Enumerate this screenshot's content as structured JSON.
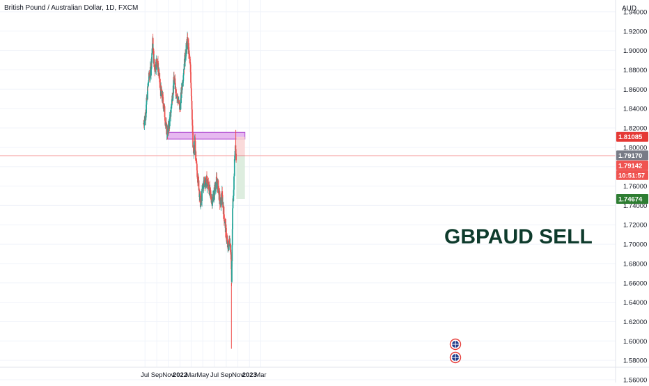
{
  "header": {
    "symbol": "British Pound / Australian Dollar, 1D, FXCM",
    "currency": "AUD"
  },
  "annotation": {
    "text": "GBPAUD SELL"
  },
  "price_tags": {
    "resistance": "1.81085",
    "current": "1.79170",
    "last": "1.79142",
    "countdown": "10:51:57",
    "target": "1.74674"
  },
  "colors": {
    "up": "#26a69a",
    "down": "#ef5350",
    "zone_fill": "#e6b8f0",
    "zone_stroke": "#b04ad0",
    "stop_fill": "#f9d3d3",
    "target_fill": "#d9ebdc",
    "annotation": "#0e3b2c",
    "price_line": "#f7a9a9"
  },
  "chart_data": {
    "type": "candlestick",
    "title": "British Pound / Australian Dollar, 1D, FXCM",
    "ylabel": "AUD",
    "ylim": [
      1.56,
      1.95
    ],
    "y_ticks": [
      "1.94000",
      "1.92000",
      "1.90000",
      "1.88000",
      "1.86000",
      "1.84000",
      "1.82000",
      "1.80000",
      "1.78000",
      "1.76000",
      "1.74000",
      "1.72000",
      "1.70000",
      "1.68000",
      "1.66000",
      "1.64000",
      "1.62000",
      "1.60000",
      "1.58000",
      "1.56000"
    ],
    "x_ticks": [
      "Jul",
      "Sep",
      "Nov",
      "2022",
      "Mar",
      "May",
      "Jul",
      "Sep",
      "Nov",
      "2023",
      "Mar"
    ],
    "price_path": [
      [
        "2021-06-24",
        1.825
      ],
      [
        "2021-07-05",
        1.835
      ],
      [
        "2021-07-20",
        1.87
      ],
      [
        "2021-08-01",
        1.88
      ],
      [
        "2021-08-10",
        1.91
      ],
      [
        "2021-08-20",
        1.88
      ],
      [
        "2021-09-01",
        1.89
      ],
      [
        "2021-09-10",
        1.88
      ],
      [
        "2021-09-20",
        1.86
      ],
      [
        "2021-10-01",
        1.85
      ],
      [
        "2021-10-10",
        1.84
      ],
      [
        "2021-10-20",
        1.82
      ],
      [
        "2021-10-28",
        1.815
      ],
      [
        "2021-11-10",
        1.83
      ],
      [
        "2021-11-20",
        1.85
      ],
      [
        "2021-12-01",
        1.87
      ],
      [
        "2021-12-10",
        1.86
      ],
      [
        "2021-12-20",
        1.85
      ],
      [
        "2022-01-01",
        1.84
      ],
      [
        "2022-01-10",
        1.86
      ],
      [
        "2022-01-20",
        1.88
      ],
      [
        "2022-02-01",
        1.9
      ],
      [
        "2022-02-10",
        1.91
      ],
      [
        "2022-02-18",
        1.895
      ],
      [
        "2022-02-25",
        1.88
      ],
      [
        "2022-03-05",
        1.84
      ],
      [
        "2022-03-10",
        1.8
      ],
      [
        "2022-03-15",
        1.79
      ],
      [
        "2022-03-20",
        1.81
      ],
      [
        "2022-03-25",
        1.785
      ],
      [
        "2022-04-01",
        1.775
      ],
      [
        "2022-04-10",
        1.76
      ],
      [
        "2022-04-20",
        1.74
      ],
      [
        "2022-05-01",
        1.76
      ],
      [
        "2022-05-10",
        1.765
      ],
      [
        "2022-05-20",
        1.765
      ],
      [
        "2022-06-01",
        1.76
      ],
      [
        "2022-06-10",
        1.75
      ],
      [
        "2022-06-20",
        1.745
      ],
      [
        "2022-07-01",
        1.755
      ],
      [
        "2022-07-10",
        1.765
      ],
      [
        "2022-07-20",
        1.76
      ],
      [
        "2022-08-01",
        1.74
      ],
      [
        "2022-08-10",
        1.75
      ],
      [
        "2022-08-20",
        1.73
      ],
      [
        "2022-09-01",
        1.71
      ],
      [
        "2022-09-10",
        1.695
      ],
      [
        "2022-09-20",
        1.705
      ],
      [
        "2022-09-26",
        1.69
      ],
      [
        "2022-09-29",
        1.66
      ],
      [
        "2022-10-02",
        1.7
      ],
      [
        "2022-10-05",
        1.74
      ],
      [
        "2022-10-10",
        1.76
      ],
      [
        "2022-10-14",
        1.78
      ],
      [
        "2022-10-18",
        1.805
      ],
      [
        "2022-10-20",
        1.795
      ],
      [
        "2022-10-24",
        1.7914
      ]
    ],
    "wick_extremes": [
      {
        "date": "2022-09-28",
        "low": 1.592
      },
      {
        "date": "2022-10-21",
        "high": 1.818
      }
    ],
    "resistance_zone": {
      "from_date": "2021-10-28",
      "to_date": "2022-12-08",
      "low": 1.8085,
      "high": 1.8155
    },
    "position": {
      "entry": 1.7914,
      "stop": 1.81085,
      "target": 1.74674,
      "from_date": "2022-10-24",
      "to_date": "2022-12-08"
    }
  }
}
